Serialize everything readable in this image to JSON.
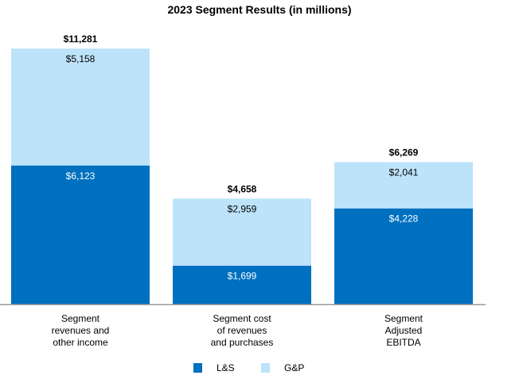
{
  "chart_data": {
    "type": "bar",
    "stacked": true,
    "title": "2023 Segment Results (in millions)",
    "categories": [
      [
        "Segment",
        "revenues and",
        "other income"
      ],
      [
        "Segment cost",
        "of revenues",
        "and purchases"
      ],
      [
        "Segment",
        "Adjusted",
        "EBITDA"
      ]
    ],
    "series": [
      {
        "name": "L&S",
        "color": "#0070C0",
        "values": [
          6123,
          1699,
          4228
        ],
        "labels": [
          "$6,123",
          "$1,699",
          "$4,228"
        ]
      },
      {
        "name": "G&P",
        "color": "#BDE3FB",
        "values": [
          5158,
          2959,
          2041
        ],
        "labels": [
          "$5,158",
          "$2,959",
          "$2,041"
        ]
      }
    ],
    "totals": [
      11281,
      4658,
      6269
    ],
    "total_labels": [
      "$11,281",
      "$4,658",
      "$6,269"
    ],
    "ylim": [
      0,
      11281
    ],
    "grid": false,
    "legend": "bottom"
  }
}
